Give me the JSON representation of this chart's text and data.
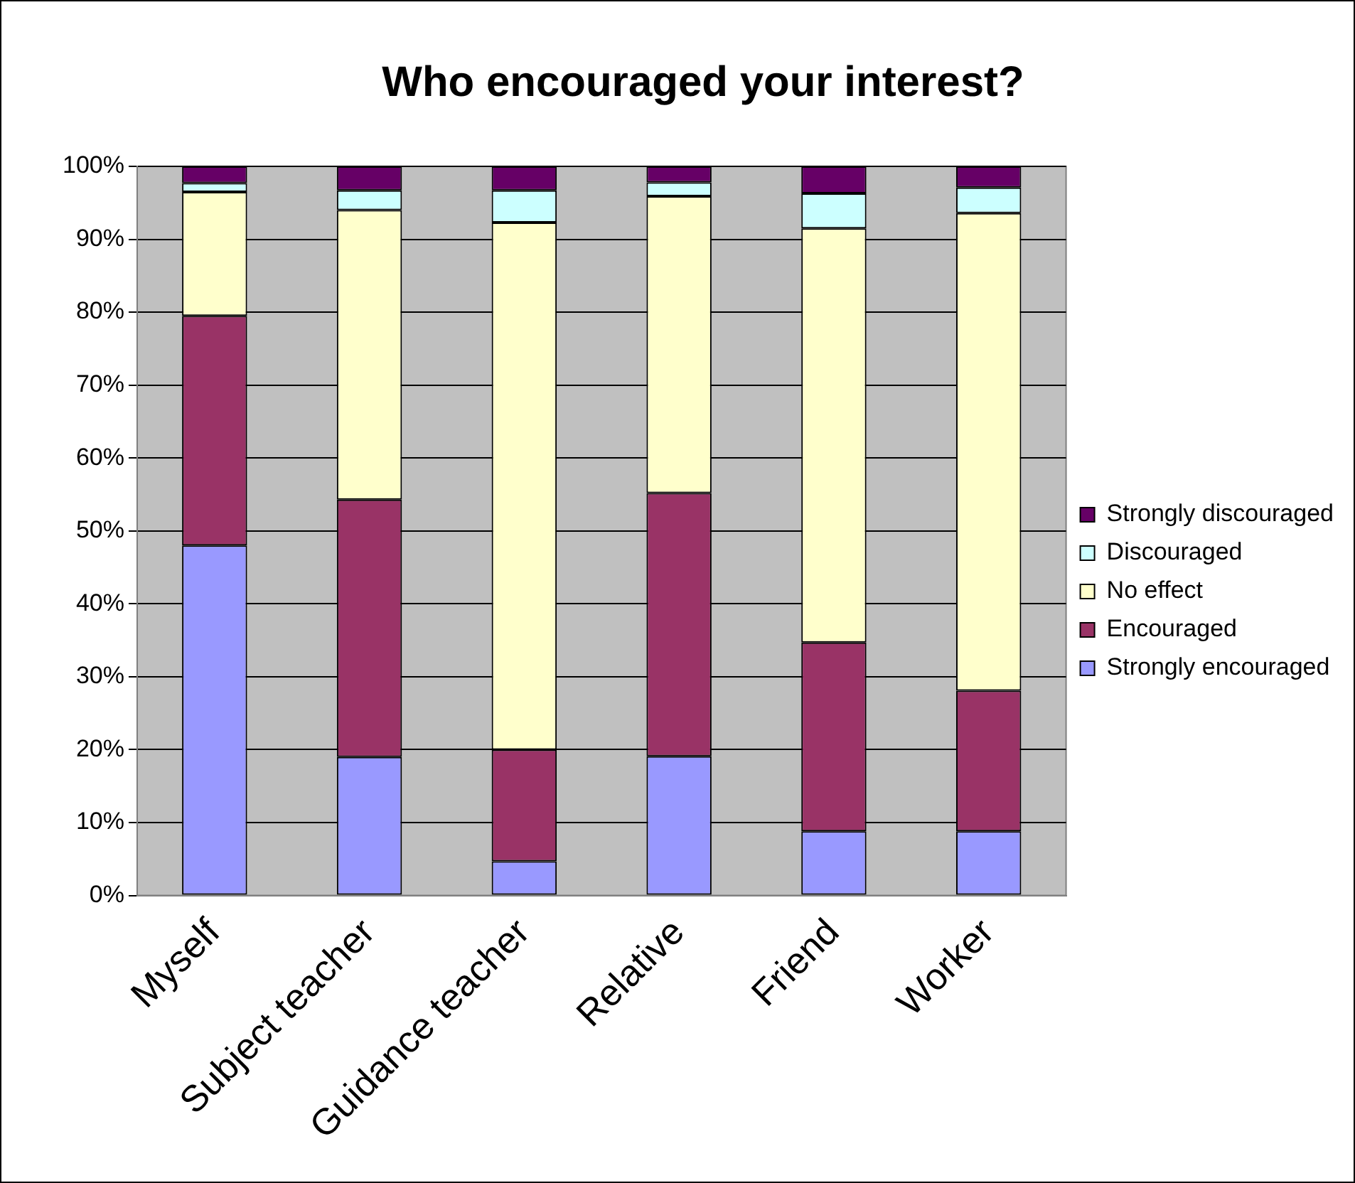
{
  "chart_data": {
    "type": "bar",
    "title": "Who encouraged your interest?",
    "stacked": true,
    "legend": "right",
    "grid": "y",
    "categories": [
      "Myself",
      "Subject teacher",
      "Guidance teacher",
      "Relative",
      "Friend",
      "Worker"
    ],
    "ylim": [
      0,
      100
    ],
    "yticks": [
      {
        "value": 0,
        "label": "0%"
      },
      {
        "value": 10,
        "label": "10%"
      },
      {
        "value": 20,
        "label": "20%"
      },
      {
        "value": 30,
        "label": "30%"
      },
      {
        "value": 40,
        "label": "40%"
      },
      {
        "value": 50,
        "label": "50%"
      },
      {
        "value": 60,
        "label": "60%"
      },
      {
        "value": 70,
        "label": "70%"
      },
      {
        "value": 80,
        "label": "80%"
      },
      {
        "value": 90,
        "label": "90%"
      },
      {
        "value": 100,
        "label": "100%"
      }
    ],
    "series": [
      {
        "name": "Strongly encouraged",
        "color": "#9999ff",
        "values": [
          48,
          19,
          4.7,
          19.1,
          8.8,
          8.8
        ]
      },
      {
        "name": "Encouraged",
        "color": "#993366",
        "values": [
          31.5,
          35.3,
          15.3,
          36.1,
          25.9,
          19.3
        ]
      },
      {
        "name": "No effect",
        "color": "#ffffcc",
        "values": [
          17,
          39.7,
          72.3,
          40.7,
          56.8,
          65.5
        ]
      },
      {
        "name": "Discouraged",
        "color": "#ccffff",
        "values": [
          1.2,
          2.7,
          4.4,
          1.9,
          4.8,
          3.5
        ]
      },
      {
        "name": "Strongly discouraged",
        "color": "#660066",
        "values": [
          2.3,
          3.3,
          3.3,
          2.2,
          3.7,
          2.9
        ]
      }
    ]
  }
}
